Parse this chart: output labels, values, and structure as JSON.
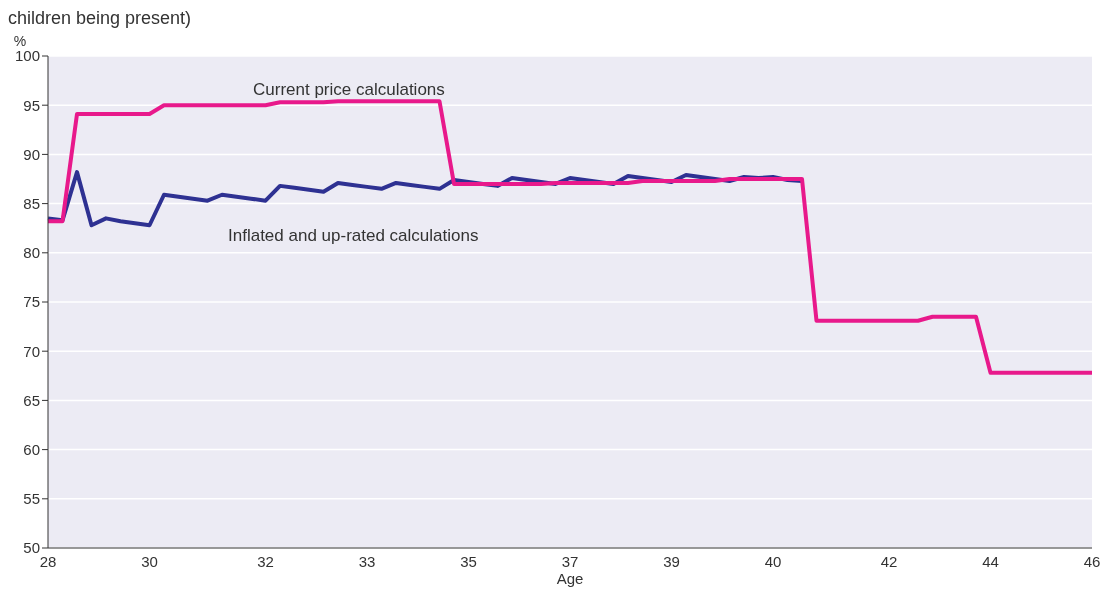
{
  "chart_data": {
    "type": "line",
    "title": "children being present)",
    "xlabel": "Age",
    "ylabel": "%",
    "categories": [
      "28",
      null,
      null,
      null,
      null,
      null,
      null,
      "30",
      null,
      null,
      null,
      null,
      null,
      null,
      null,
      "32",
      null,
      null,
      null,
      null,
      null,
      null,
      "33",
      null,
      null,
      null,
      null,
      null,
      null,
      "35",
      null,
      null,
      null,
      null,
      null,
      null,
      "37",
      null,
      null,
      null,
      null,
      null,
      null,
      "39",
      null,
      null,
      null,
      null,
      null,
      null,
      "40",
      null,
      null,
      null,
      null,
      null,
      null,
      null,
      "42",
      null,
      null,
      null,
      null,
      null,
      null,
      "44",
      null,
      null,
      null,
      null,
      null,
      null,
      "46"
    ],
    "series": [
      {
        "name": "Inflated and up-rated calculations",
        "color": "#2e3192",
        "values": [
          83.5,
          83.3,
          88.2,
          82.8,
          83.5,
          83.2,
          83.0,
          82.8,
          85.9,
          85.7,
          85.5,
          85.3,
          85.9,
          85.7,
          85.5,
          85.3,
          86.8,
          86.6,
          86.4,
          86.2,
          87.1,
          86.9,
          86.7,
          86.5,
          87.1,
          86.9,
          86.7,
          86.5,
          87.4,
          87.2,
          87.0,
          86.8,
          87.6,
          87.4,
          87.2,
          87.0,
          87.6,
          87.4,
          87.2,
          87.0,
          87.8,
          87.6,
          87.4,
          87.2,
          87.9,
          87.7,
          87.5,
          87.3,
          87.7,
          87.6,
          87.7,
          87.4,
          87.3,
          null,
          null,
          null,
          null,
          null,
          null,
          null,
          null,
          null,
          null,
          null,
          null,
          null,
          null,
          null,
          null,
          null,
          null,
          null,
          null
        ]
      },
      {
        "name": "Current price calculations",
        "color": "#e8198b",
        "values": [
          83.2,
          83.2,
          94.1,
          94.1,
          94.1,
          94.1,
          94.1,
          94.1,
          95.0,
          95.0,
          95.0,
          95.0,
          95.0,
          95.0,
          95.0,
          95.0,
          95.3,
          95.3,
          95.3,
          95.3,
          95.4,
          95.4,
          95.4,
          95.4,
          95.4,
          95.4,
          95.4,
          95.4,
          87.0,
          87.0,
          87.0,
          87.0,
          87.0,
          87.0,
          87.0,
          87.1,
          87.1,
          87.1,
          87.1,
          87.1,
          87.1,
          87.3,
          87.3,
          87.3,
          87.3,
          87.3,
          87.3,
          87.5,
          87.5,
          87.5,
          87.5,
          87.5,
          87.5,
          73.1,
          73.1,
          73.1,
          73.1,
          73.1,
          73.1,
          73.1,
          73.1,
          73.5,
          73.5,
          73.5,
          73.5,
          67.8,
          67.8,
          67.8,
          67.8,
          67.8,
          67.8,
          67.8,
          67.8
        ]
      }
    ],
    "ylim": [
      50,
      100
    ],
    "yticks": [
      50,
      55,
      60,
      65,
      70,
      75,
      80,
      85,
      90,
      95,
      100
    ],
    "grid": "y",
    "marker": "none",
    "line_style": "solid"
  }
}
